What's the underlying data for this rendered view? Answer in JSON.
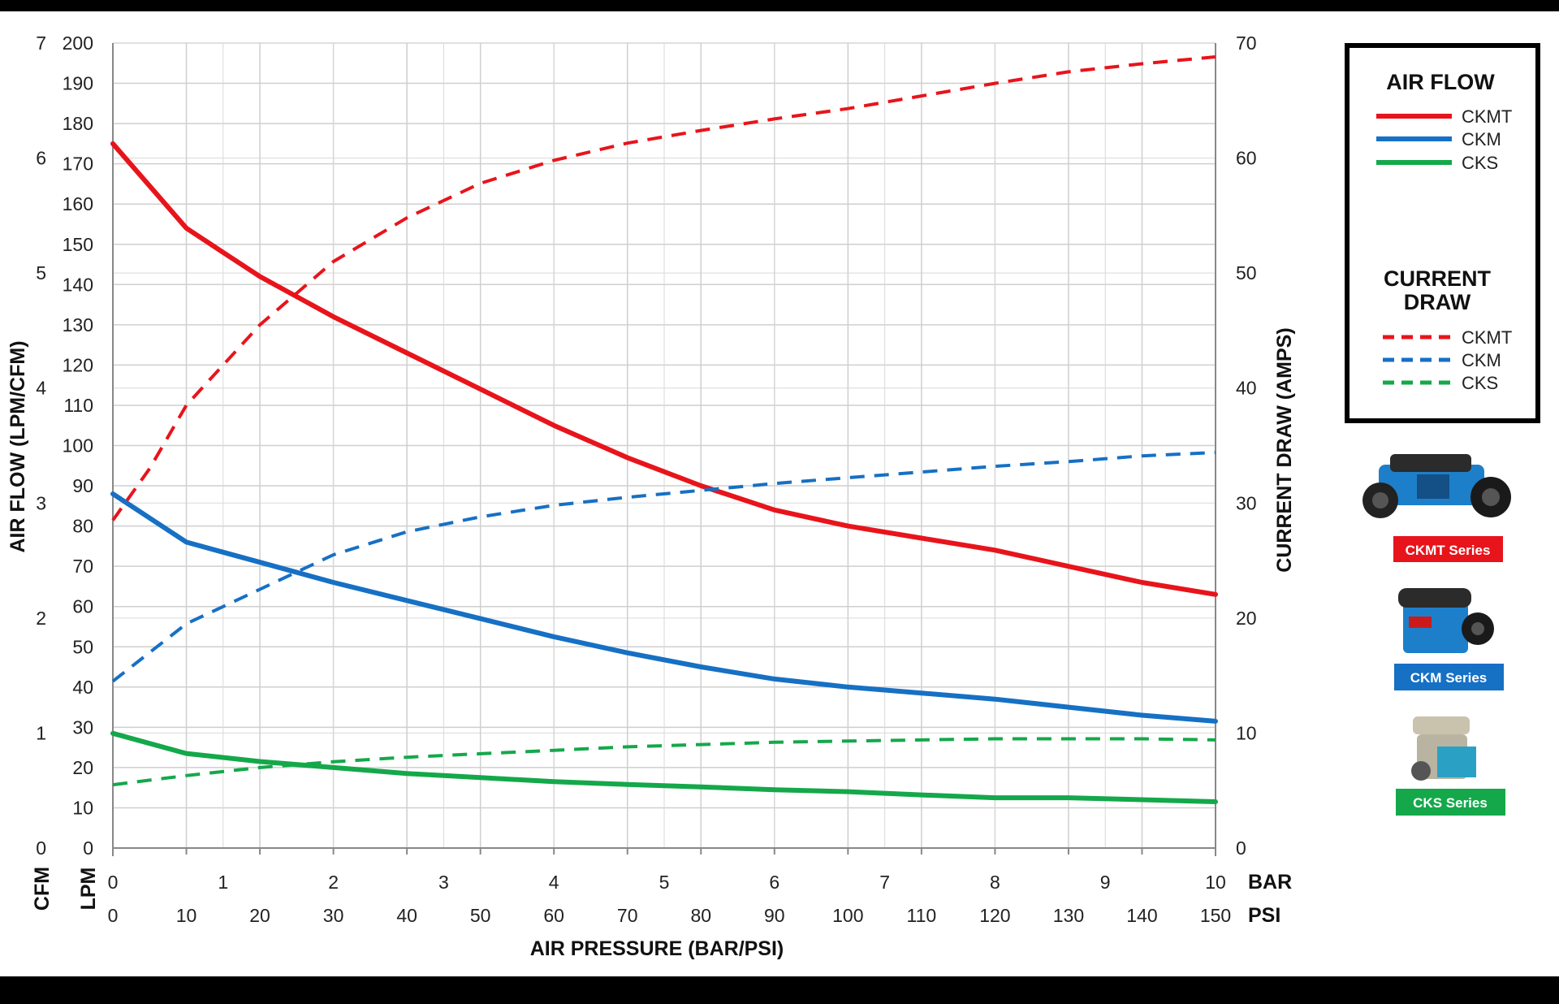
{
  "chart_data": {
    "type": "line",
    "xlabel": "AIR PRESSURE (BAR/PSI)",
    "ylabel_left": "AIR FLOW (LPM/CFM)",
    "ylabel_right": "CURRENT DRAW (AMPS)",
    "x_axes": [
      {
        "unit": "BAR",
        "ticks": [
          "0",
          "1",
          "2",
          "3",
          "4",
          "5",
          "6",
          "7",
          "8",
          "9",
          "10"
        ]
      },
      {
        "unit": "PSI",
        "ticks": [
          "0",
          "10",
          "20",
          "30",
          "40",
          "50",
          "60",
          "70",
          "80",
          "90",
          "100",
          "110",
          "120",
          "130",
          "140",
          "150"
        ]
      }
    ],
    "y_axes": [
      {
        "unit": "CFM",
        "range": [
          0,
          7
        ],
        "ticks": [
          "0",
          "1",
          "2",
          "3",
          "4",
          "5",
          "6",
          "7"
        ]
      },
      {
        "unit": "LPM",
        "range": [
          0,
          200
        ],
        "ticks": [
          "0",
          "10",
          "20",
          "30",
          "40",
          "50",
          "60",
          "70",
          "80",
          "90",
          "100",
          "110",
          "120",
          "130",
          "140",
          "150",
          "160",
          "170",
          "180",
          "190",
          "200"
        ]
      },
      {
        "unit": "AMPS",
        "range": [
          0,
          70
        ],
        "ticks": [
          "0",
          "10",
          "20",
          "30",
          "40",
          "50",
          "60",
          "70"
        ]
      }
    ],
    "xlim_psi": [
      0,
      150
    ],
    "grid": true,
    "legend_position": "right",
    "series": [
      {
        "name": "CKMT",
        "group": "AIR FLOW",
        "axis": "LPM",
        "style": "solid",
        "color": "#e8141b",
        "x": [
          0,
          10,
          15,
          20,
          30,
          40,
          50,
          60,
          70,
          80,
          90,
          100,
          110,
          120,
          130,
          140,
          150
        ],
        "y": [
          175,
          154,
          148,
          142,
          132,
          123,
          114,
          105,
          97,
          90,
          84,
          80,
          77,
          74,
          70,
          66,
          63
        ]
      },
      {
        "name": "CKM",
        "group": "AIR FLOW",
        "axis": "LPM",
        "style": "solid",
        "color": "#1670c4",
        "x": [
          0,
          10,
          15,
          20,
          30,
          40,
          50,
          60,
          70,
          80,
          90,
          100,
          110,
          120,
          130,
          140,
          150
        ],
        "y": [
          88,
          76,
          73.5,
          71,
          66,
          61.5,
          57,
          52.5,
          48.5,
          45,
          42,
          40,
          38.5,
          37,
          35,
          33,
          31.5
        ]
      },
      {
        "name": "CKS",
        "group": "AIR FLOW",
        "axis": "LPM",
        "style": "solid",
        "color": "#14a84a",
        "x": [
          0,
          10,
          20,
          30,
          40,
          50,
          60,
          70,
          80,
          90,
          100,
          110,
          120,
          130,
          140,
          150
        ],
        "y": [
          28.5,
          23.5,
          21.5,
          20,
          18.5,
          17.5,
          16.5,
          15.8,
          15.2,
          14.5,
          14,
          13.2,
          12.5,
          12.5,
          12,
          11.5
        ]
      },
      {
        "name": "CKMT",
        "group": "CURRENT DRAW",
        "axis": "AMPS",
        "style": "dashed",
        "color": "#e8141b",
        "x": [
          0,
          5,
          10,
          15,
          20,
          30,
          40,
          50,
          60,
          70,
          80,
          90,
          100,
          110,
          120,
          130,
          140,
          150
        ],
        "y": [
          28.5,
          33,
          38.5,
          42,
          45.5,
          51,
          54.8,
          57.8,
          59.8,
          61.3,
          62.4,
          63.4,
          64.3,
          65.4,
          66.5,
          67.5,
          68.2,
          68.8
        ]
      },
      {
        "name": "CKM",
        "group": "CURRENT DRAW",
        "axis": "AMPS",
        "style": "dashed",
        "color": "#1670c4",
        "x": [
          0,
          10,
          20,
          30,
          40,
          50,
          60,
          70,
          80,
          90,
          100,
          110,
          120,
          130,
          140,
          150
        ],
        "y": [
          14.5,
          19.5,
          22.5,
          25.5,
          27.5,
          28.8,
          29.8,
          30.5,
          31.1,
          31.7,
          32.2,
          32.7,
          33.2,
          33.6,
          34.1,
          34.4
        ]
      },
      {
        "name": "CKS",
        "group": "CURRENT DRAW",
        "axis": "AMPS",
        "style": "dashed",
        "color": "#14a84a",
        "x": [
          0,
          10,
          20,
          30,
          40,
          50,
          60,
          70,
          80,
          90,
          100,
          110,
          120,
          130,
          140,
          150
        ],
        "y": [
          5.5,
          6.3,
          7,
          7.5,
          7.9,
          8.2,
          8.5,
          8.8,
          9,
          9.2,
          9.3,
          9.4,
          9.5,
          9.5,
          9.5,
          9.4
        ]
      }
    ]
  },
  "legend": {
    "air_flow_title": "AIR FLOW",
    "current_draw_title_line1": "CURRENT",
    "current_draw_title_line2": "DRAW",
    "air_flow_items": [
      "CKMT",
      "CKM",
      "CKS"
    ],
    "current_draw_items": [
      "CKMT",
      "CKM",
      "CKS"
    ]
  },
  "products": [
    {
      "label": "CKMT Series",
      "color": "#e8141b",
      "icon": "ckmt-compressor-photo"
    },
    {
      "label": "CKM Series",
      "color": "#1670c4",
      "icon": "ckm-compressor-photo"
    },
    {
      "label": "CKS Series",
      "color": "#14a84a",
      "icon": "cks-compressor-photo"
    }
  ]
}
